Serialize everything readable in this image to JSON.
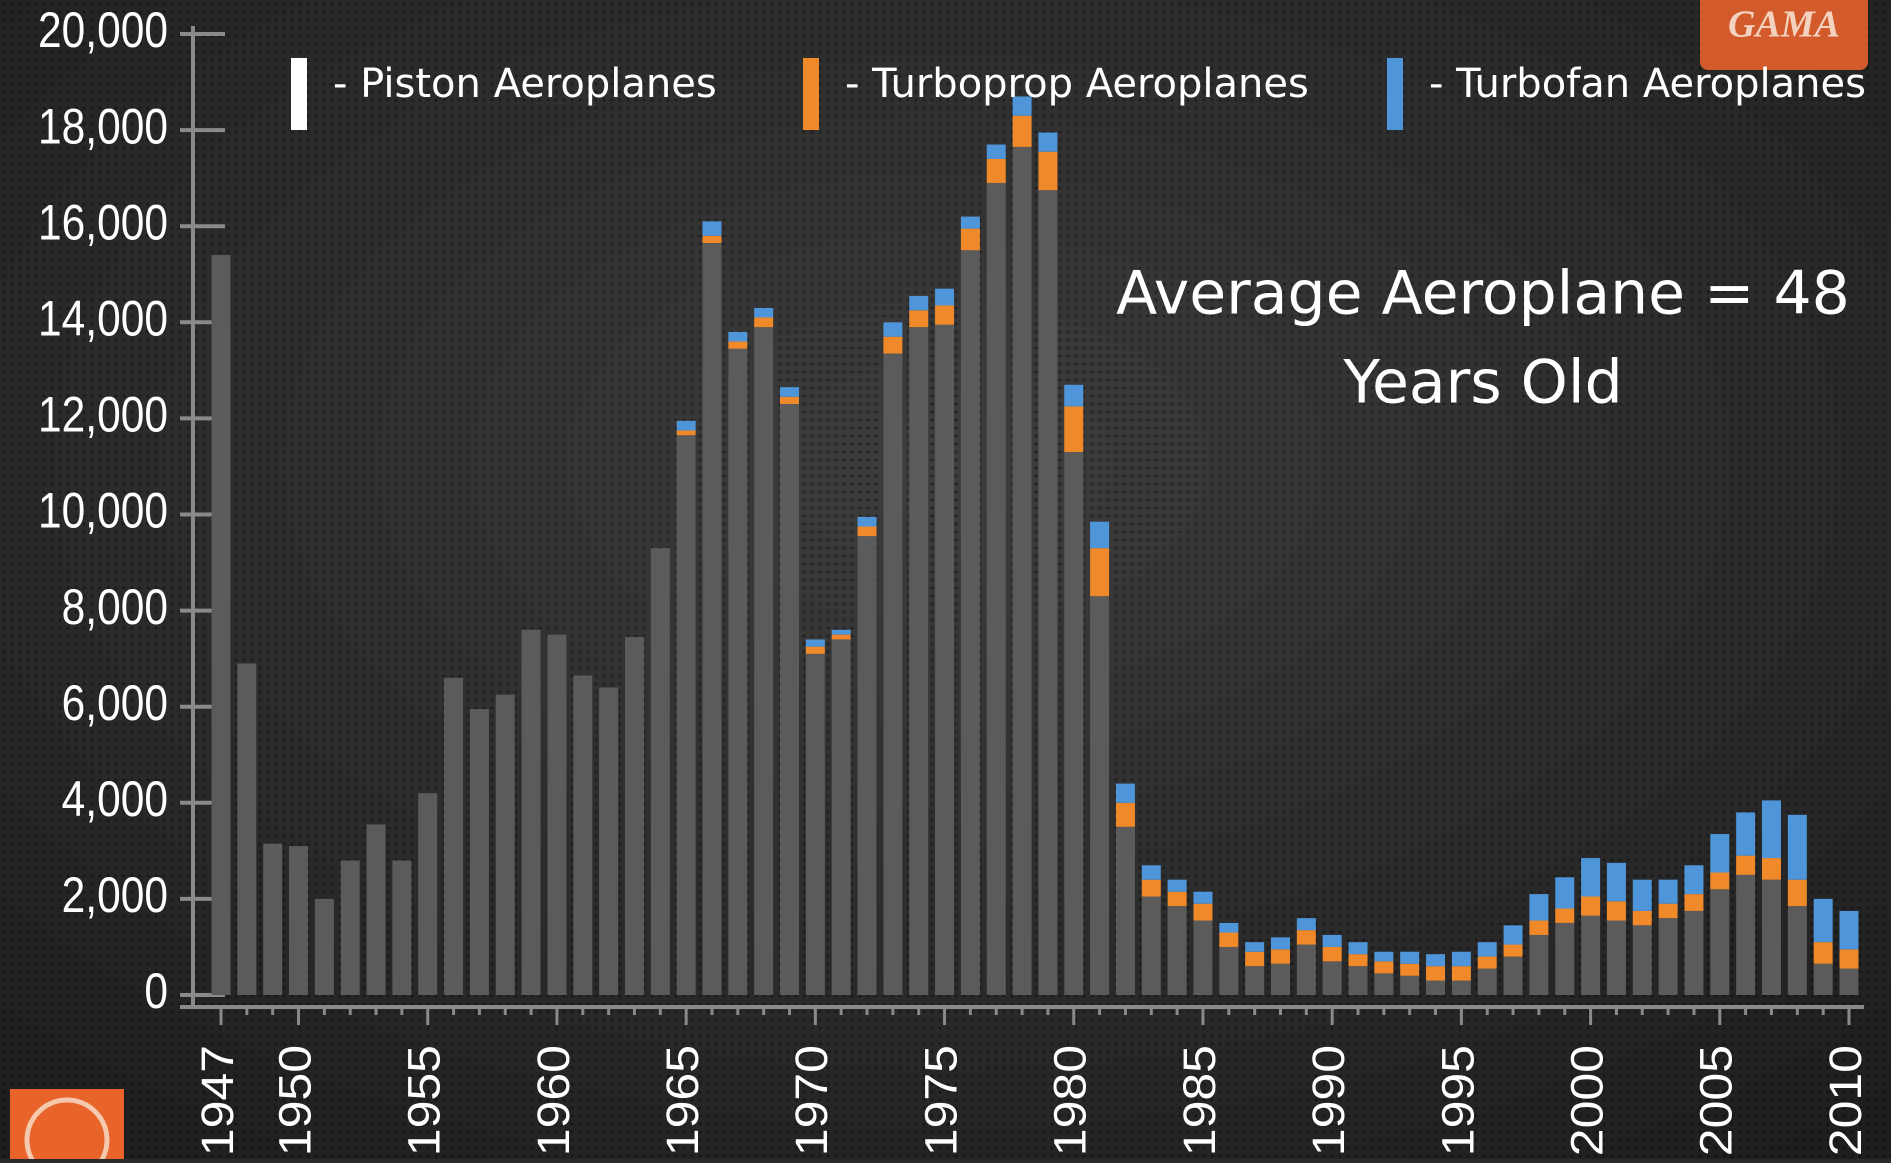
{
  "chart_data": {
    "type": "stacked_bar",
    "logo": "GAMA",
    "annotation": [
      "Average Aeroplane = 48",
      "Years Old"
    ],
    "categories": [
      "1947",
      null,
      null,
      "1950",
      null,
      null,
      null,
      null,
      "1955",
      null,
      null,
      null,
      null,
      "1960",
      null,
      null,
      null,
      null,
      "1965",
      null,
      null,
      null,
      null,
      "1970",
      null,
      null,
      null,
      null,
      "1975",
      null,
      null,
      null,
      null,
      "1980",
      null,
      null,
      null,
      null,
      "1985",
      null,
      null,
      null,
      null,
      "1990",
      null,
      null,
      null,
      null,
      "1995",
      null,
      null,
      null,
      null,
      "2000",
      null,
      null,
      null,
      null,
      "2005",
      null,
      null,
      null,
      null,
      "2010"
    ],
    "series": [
      {
        "name": "- Piston Aeroplanes",
        "color": "#5b5b5b",
        "legend_color": "#ffffff",
        "values": [
          15400,
          6900,
          3150,
          3100,
          2000,
          2800,
          3550,
          2800,
          4200,
          6600,
          5950,
          6250,
          7600,
          7500,
          6650,
          6400,
          7450,
          9300,
          11650,
          15650,
          13450,
          13900,
          12300,
          7100,
          7400,
          9550,
          13350,
          13900,
          13950,
          15500,
          16900,
          17650,
          16750,
          11300,
          8300,
          3500,
          2050,
          1850,
          1550,
          1000,
          600,
          650,
          1050,
          700,
          600,
          450,
          400,
          300,
          300,
          550,
          800,
          1250,
          1500,
          1650,
          1550,
          1450,
          1600,
          1750,
          2200,
          2500,
          2400,
          1850,
          650,
          550
        ]
      },
      {
        "name": "- Turboprop Aeroplanes",
        "color": "#f0892a",
        "legend_color": "#f0892a",
        "values": [
          0,
          0,
          0,
          0,
          0,
          0,
          0,
          0,
          0,
          0,
          0,
          0,
          0,
          0,
          0,
          0,
          0,
          0,
          100,
          150,
          150,
          200,
          150,
          150,
          100,
          200,
          350,
          350,
          400,
          450,
          500,
          650,
          800,
          950,
          1000,
          500,
          350,
          300,
          350,
          300,
          300,
          300,
          300,
          300,
          250,
          250,
          250,
          300,
          300,
          250,
          250,
          300,
          300,
          400,
          400,
          300,
          300,
          350,
          350,
          400,
          450,
          550,
          450,
          400
        ]
      },
      {
        "name": "- Turbofan Aeroplanes",
        "color": "#4e95d9",
        "legend_color": "#4e95d9",
        "values": [
          0,
          0,
          0,
          0,
          0,
          0,
          0,
          0,
          0,
          0,
          0,
          0,
          0,
          0,
          0,
          0,
          0,
          0,
          200,
          300,
          200,
          200,
          200,
          150,
          100,
          200,
          300,
          300,
          350,
          250,
          300,
          400,
          400,
          450,
          550,
          400,
          300,
          250,
          250,
          200,
          200,
          250,
          250,
          250,
          250,
          200,
          250,
          250,
          300,
          300,
          400,
          550,
          650,
          800,
          800,
          650,
          500,
          600,
          800,
          900,
          1200,
          1350,
          900,
          800
        ]
      }
    ],
    "ylim": [
      0,
      20000
    ],
    "yticks": [
      0,
      {
        "value": 2000,
        "label": "2,000"
      },
      {
        "value": 4000,
        "label": "4,000"
      },
      {
        "value": 6000,
        "label": "6,000"
      },
      {
        "value": 8000,
        "label": "8,000"
      },
      {
        "value": 10000,
        "label": "10,000"
      },
      {
        "value": 12000,
        "label": "12,000"
      },
      {
        "value": 14000,
        "label": "14,000"
      },
      {
        "value": 16000,
        "label": "16,000"
      },
      {
        "value": 18000,
        "label": "18,000"
      },
      {
        "value": 20000,
        "label": "20,000"
      }
    ],
    "grid": false
  }
}
